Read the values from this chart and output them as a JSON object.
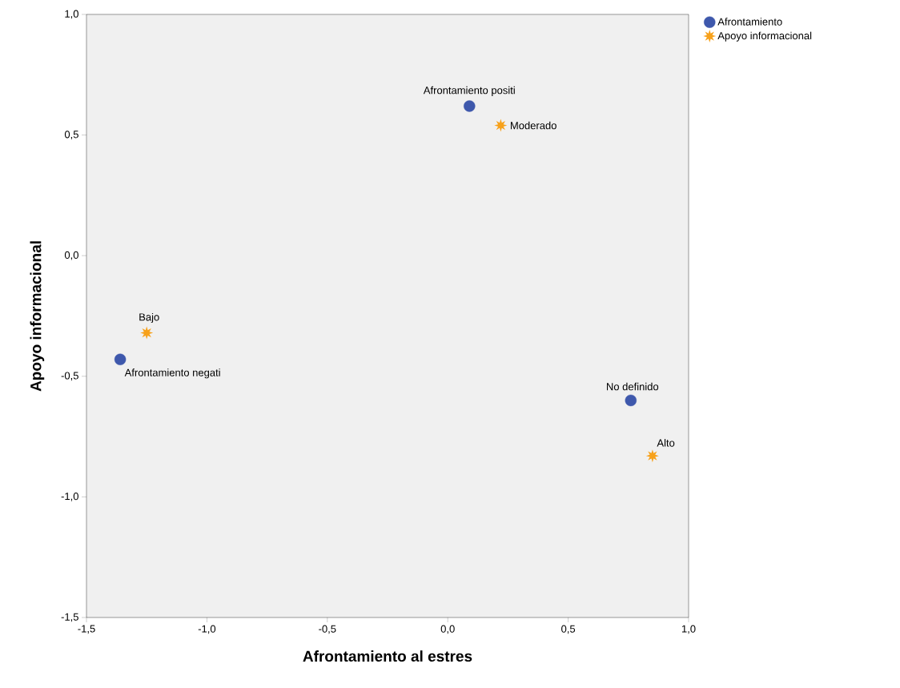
{
  "chart_data": {
    "type": "scatter",
    "xlabel": "Afrontamiento al estres",
    "ylabel": "Apoyo informacional",
    "series": [
      {
        "name": "Afrontamiento",
        "color": "#3e58ac",
        "marker": "circle",
        "x": [
          0.09,
          -1.36,
          0.76
        ],
        "values": [
          0.62,
          -0.43,
          -0.6
        ]
      },
      {
        "name": "Apoyo informacional",
        "color": "#f7a11a",
        "marker": "star",
        "x": [
          0.22,
          -1.25,
          0.85
        ],
        "values": [
          0.54,
          -0.32,
          -0.83
        ]
      }
    ],
    "annotations": [
      {
        "text": "Afrontamiento positi",
        "x": 0.09,
        "y": 0.62
      },
      {
        "text": "Afrontamiento negati",
        "x": -1.36,
        "y": -0.43
      },
      {
        "text": "No definido",
        "x": 0.76,
        "y": -0.6
      },
      {
        "text": "Moderado",
        "x": 0.22,
        "y": 0.54
      },
      {
        "text": "Bajo",
        "x": -1.25,
        "y": -0.32
      },
      {
        "text": "Alto",
        "x": 0.85,
        "y": -0.83
      }
    ],
    "xlim": [
      -1.5,
      1.0
    ],
    "ylim": [
      -1.5,
      1.0
    ],
    "xticks": [
      {
        "value": -1.5,
        "label": "-1,5"
      },
      {
        "value": -1.0,
        "label": "-1,0"
      },
      {
        "value": -0.5,
        "label": "-0,5"
      },
      {
        "value": 0.0,
        "label": "0,0"
      },
      {
        "value": 0.5,
        "label": "0,5"
      },
      {
        "value": 1.0,
        "label": "1,0"
      }
    ],
    "yticks": [
      {
        "value": -1.5,
        "label": "-1,5"
      },
      {
        "value": -1.0,
        "label": "-1,0"
      },
      {
        "value": -0.5,
        "label": "-0,5"
      },
      {
        "value": 0.0,
        "label": "0,0"
      },
      {
        "value": 0.5,
        "label": "0,5"
      },
      {
        "value": 1.0,
        "label": "1,0"
      }
    ],
    "grid": false,
    "legend": "top right"
  }
}
